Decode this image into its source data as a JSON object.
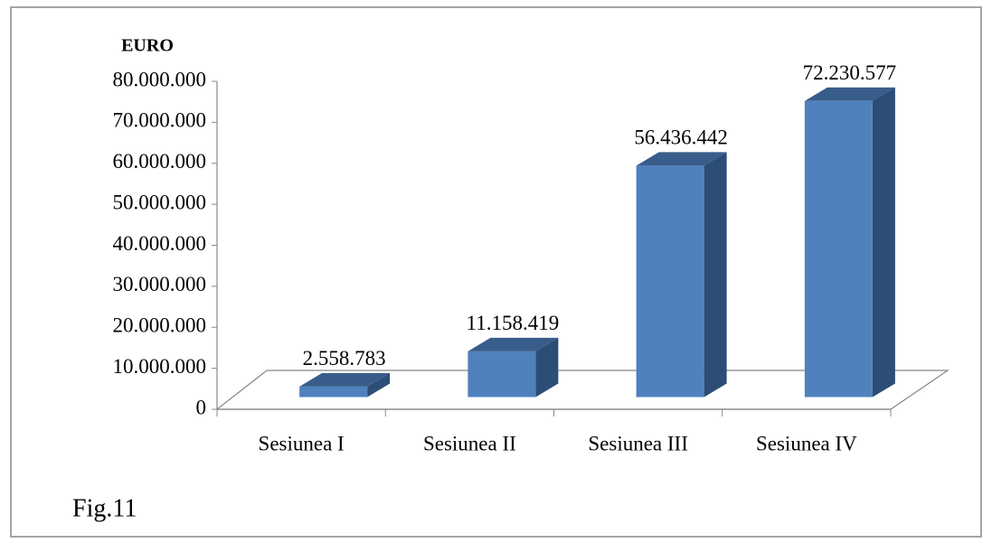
{
  "chart_data": {
    "type": "bar3d",
    "y_label": "EURO",
    "annotation": "Fig.11",
    "categories": [
      "Sesiunea I",
      "Sesiunea II",
      "Sesiunea III",
      "Sesiunea IV"
    ],
    "values": [
      2558783,
      11158419,
      56436442,
      72230577
    ],
    "value_labels": [
      "2.558.783",
      "11.158.419",
      "56.436.442",
      "72.230.577"
    ],
    "color": "#4f81bd",
    "ylim": [
      0,
      80000000
    ],
    "yticks": [
      0,
      {
        "value": 10000000,
        "label": "10.000.000"
      },
      {
        "value": 20000000,
        "label": "20.000.000"
      },
      {
        "value": 30000000,
        "label": "30.000.000"
      },
      {
        "value": 40000000,
        "label": "40.000.000"
      },
      {
        "value": 50000000,
        "label": "50.000.000"
      },
      {
        "value": 60000000,
        "label": "60.000.000"
      },
      {
        "value": 70000000,
        "label": "70.000.000"
      },
      {
        "value": 80000000,
        "label": "80.000.000"
      }
    ]
  }
}
